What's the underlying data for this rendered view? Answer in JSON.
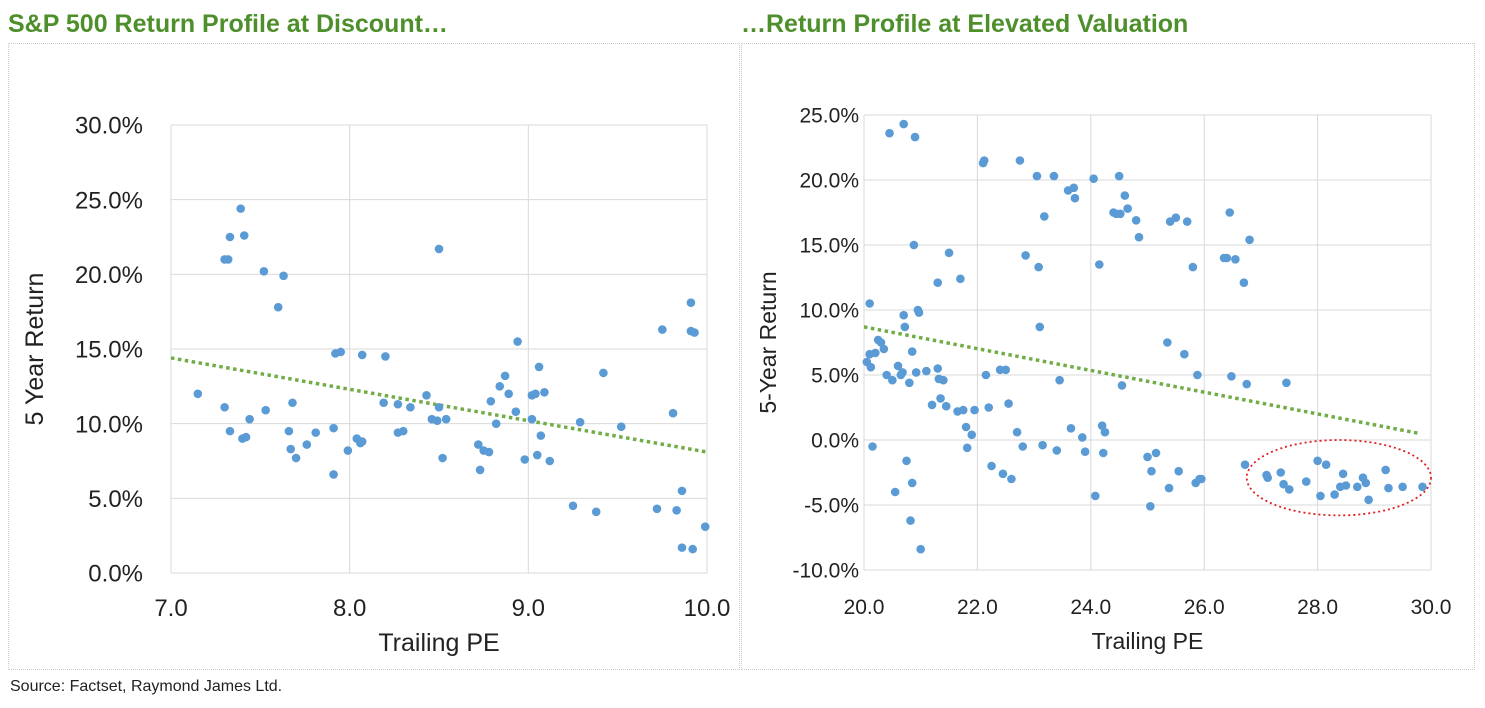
{
  "titles": {
    "left": "S&P 500 Return Profile at Discount…",
    "right": "…Return Profile at Elevated Valuation"
  },
  "source": "Source: Factset, Raymond James Ltd.",
  "colors": {
    "title_green": "#4d8f2a",
    "point_blue": "#5b9bd5",
    "trend_green": "#70ad47",
    "highlight_red": "#e02020",
    "grid": "#d9d9d9"
  },
  "chart_data": [
    {
      "type": "scatter",
      "title": "S&P 500 Return Profile at Discount…",
      "xlabel": "Trailing PE",
      "ylabel": "5 Year Return",
      "xlim": [
        7.0,
        10.0
      ],
      "ylim": [
        0.0,
        0.3
      ],
      "x_ticks": [
        7.0,
        8.0,
        9.0,
        10.0
      ],
      "x_tick_labels": [
        "7.0",
        "8.0",
        "9.0",
        "10.0"
      ],
      "y_ticks": [
        0.0,
        0.05,
        0.1,
        0.15,
        0.2,
        0.25,
        0.3
      ],
      "y_tick_labels": [
        "0.0%",
        "5.0%",
        "10.0%",
        "15.0%",
        "20.0%",
        "25.0%",
        "30.0%"
      ],
      "grid": true,
      "points": [
        [
          7.15,
          0.12
        ],
        [
          7.3,
          0.111
        ],
        [
          7.3,
          0.21
        ],
        [
          7.32,
          0.21
        ],
        [
          7.33,
          0.225
        ],
        [
          7.33,
          0.095
        ],
        [
          7.39,
          0.244
        ],
        [
          7.4,
          0.09
        ],
        [
          7.41,
          0.226
        ],
        [
          7.42,
          0.091
        ],
        [
          7.44,
          0.103
        ],
        [
          7.52,
          0.202
        ],
        [
          7.53,
          0.109
        ],
        [
          7.6,
          0.178
        ],
        [
          7.63,
          0.199
        ],
        [
          7.66,
          0.095
        ],
        [
          7.67,
          0.083
        ],
        [
          7.68,
          0.114
        ],
        [
          7.7,
          0.077
        ],
        [
          7.76,
          0.086
        ],
        [
          7.81,
          0.094
        ],
        [
          7.91,
          0.066
        ],
        [
          7.91,
          0.097
        ],
        [
          7.92,
          0.147
        ],
        [
          7.95,
          0.148
        ],
        [
          7.99,
          0.082
        ],
        [
          8.04,
          0.09
        ],
        [
          8.06,
          0.087
        ],
        [
          8.07,
          0.146
        ],
        [
          8.07,
          0.088
        ],
        [
          8.19,
          0.114
        ],
        [
          8.2,
          0.145
        ],
        [
          8.27,
          0.113
        ],
        [
          8.27,
          0.094
        ],
        [
          8.3,
          0.095
        ],
        [
          8.34,
          0.111
        ],
        [
          8.43,
          0.119
        ],
        [
          8.46,
          0.103
        ],
        [
          8.49,
          0.102
        ],
        [
          8.5,
          0.111
        ],
        [
          8.5,
          0.217
        ],
        [
          8.52,
          0.077
        ],
        [
          8.54,
          0.103
        ],
        [
          8.72,
          0.086
        ],
        [
          8.73,
          0.069
        ],
        [
          8.75,
          0.082
        ],
        [
          8.78,
          0.081
        ],
        [
          8.79,
          0.115
        ],
        [
          8.82,
          0.1
        ],
        [
          8.84,
          0.125
        ],
        [
          8.87,
          0.132
        ],
        [
          8.89,
          0.12
        ],
        [
          8.93,
          0.108
        ],
        [
          8.94,
          0.155
        ],
        [
          8.98,
          0.076
        ],
        [
          9.02,
          0.103
        ],
        [
          9.02,
          0.119
        ],
        [
          9.04,
          0.12
        ],
        [
          9.05,
          0.079
        ],
        [
          9.06,
          0.138
        ],
        [
          9.07,
          0.092
        ],
        [
          9.09,
          0.121
        ],
        [
          9.12,
          0.075
        ],
        [
          9.25,
          0.045
        ],
        [
          9.29,
          0.101
        ],
        [
          9.38,
          0.041
        ],
        [
          9.42,
          0.134
        ],
        [
          9.52,
          0.098
        ],
        [
          9.72,
          0.043
        ],
        [
          9.75,
          0.163
        ],
        [
          9.81,
          0.107
        ],
        [
          9.83,
          0.042
        ],
        [
          9.86,
          0.055
        ],
        [
          9.86,
          0.017
        ],
        [
          9.91,
          0.181
        ],
        [
          9.91,
          0.162
        ],
        [
          9.92,
          0.016
        ],
        [
          9.93,
          0.161
        ],
        [
          9.99,
          0.031
        ]
      ],
      "trendline": {
        "style": "dotted",
        "from": [
          7.0,
          0.144
        ],
        "to": [
          10.0,
          0.081
        ]
      }
    },
    {
      "type": "scatter",
      "title": "…Return Profile at Elevated Valuation",
      "xlabel": "Trailing PE",
      "ylabel": "5-Year Return",
      "xlim": [
        20.0,
        30.0
      ],
      "ylim": [
        -0.1,
        0.25
      ],
      "x_ticks": [
        20,
        22,
        24,
        26,
        28,
        30
      ],
      "x_tick_labels": [
        "20.0",
        "22.0",
        "24.0",
        "26.0",
        "28.0",
        "30.0"
      ],
      "y_ticks": [
        -0.1,
        -0.05,
        0.0,
        0.05,
        0.1,
        0.15,
        0.2,
        0.25
      ],
      "y_tick_labels": [
        "-10.0%",
        "-5.0%",
        "0.0%",
        "5.0%",
        "10.0%",
        "15.0%",
        "20.0%",
        "25.0%"
      ],
      "grid": true,
      "points": [
        [
          20.05,
          0.06
        ],
        [
          20.1,
          0.066
        ],
        [
          20.1,
          0.105
        ],
        [
          20.12,
          0.056
        ],
        [
          20.15,
          -0.005
        ],
        [
          20.2,
          0.067
        ],
        [
          20.25,
          0.077
        ],
        [
          20.3,
          0.075
        ],
        [
          20.35,
          0.07
        ],
        [
          20.4,
          0.05
        ],
        [
          20.45,
          0.236
        ],
        [
          20.5,
          0.046
        ],
        [
          20.55,
          -0.04
        ],
        [
          20.6,
          0.057
        ],
        [
          20.65,
          0.05
        ],
        [
          20.68,
          0.052
        ],
        [
          20.7,
          0.096
        ],
        [
          20.7,
          0.243
        ],
        [
          20.72,
          0.087
        ],
        [
          20.75,
          -0.016
        ],
        [
          20.8,
          0.044
        ],
        [
          20.82,
          -0.062
        ],
        [
          20.85,
          0.068
        ],
        [
          20.85,
          -0.033
        ],
        [
          20.88,
          0.15
        ],
        [
          20.9,
          0.233
        ],
        [
          20.92,
          0.052
        ],
        [
          20.95,
          0.1
        ],
        [
          20.97,
          0.098
        ],
        [
          21.0,
          -0.084
        ],
        [
          21.1,
          0.053
        ],
        [
          21.2,
          0.027
        ],
        [
          21.3,
          0.121
        ],
        [
          21.3,
          0.055
        ],
        [
          21.32,
          0.047
        ],
        [
          21.35,
          0.032
        ],
        [
          21.4,
          0.046
        ],
        [
          21.45,
          0.026
        ],
        [
          21.5,
          0.144
        ],
        [
          21.65,
          0.022
        ],
        [
          21.7,
          0.124
        ],
        [
          21.75,
          0.023
        ],
        [
          21.8,
          0.01
        ],
        [
          21.82,
          -0.006
        ],
        [
          21.9,
          0.004
        ],
        [
          21.95,
          0.023
        ],
        [
          22.1,
          0.213
        ],
        [
          22.12,
          0.215
        ],
        [
          22.15,
          0.05
        ],
        [
          22.2,
          0.025
        ],
        [
          22.25,
          -0.02
        ],
        [
          22.4,
          0.054
        ],
        [
          22.45,
          -0.026
        ],
        [
          22.5,
          0.054
        ],
        [
          22.55,
          0.028
        ],
        [
          22.6,
          -0.03
        ],
        [
          22.7,
          0.006
        ],
        [
          22.75,
          0.215
        ],
        [
          22.8,
          -0.005
        ],
        [
          22.85,
          0.142
        ],
        [
          23.05,
          0.203
        ],
        [
          23.08,
          0.133
        ],
        [
          23.1,
          0.087
        ],
        [
          23.15,
          -0.004
        ],
        [
          23.18,
          0.172
        ],
        [
          23.35,
          0.203
        ],
        [
          23.4,
          -0.008
        ],
        [
          23.45,
          0.046
        ],
        [
          23.6,
          0.192
        ],
        [
          23.65,
          0.009
        ],
        [
          23.7,
          0.194
        ],
        [
          23.72,
          0.186
        ],
        [
          23.85,
          0.002
        ],
        [
          23.9,
          -0.009
        ],
        [
          24.05,
          0.201
        ],
        [
          24.08,
          -0.043
        ],
        [
          24.15,
          0.135
        ],
        [
          24.2,
          0.011
        ],
        [
          24.22,
          -0.01
        ],
        [
          24.25,
          0.006
        ],
        [
          24.4,
          0.175
        ],
        [
          24.45,
          0.174
        ],
        [
          24.5,
          0.203
        ],
        [
          24.52,
          0.174
        ],
        [
          24.55,
          0.042
        ],
        [
          24.6,
          0.188
        ],
        [
          24.65,
          0.178
        ],
        [
          24.8,
          0.169
        ],
        [
          24.85,
          0.156
        ],
        [
          25.0,
          -0.013
        ],
        [
          25.05,
          -0.051
        ],
        [
          25.07,
          -0.024
        ],
        [
          25.15,
          -0.01
        ],
        [
          25.35,
          0.075
        ],
        [
          25.38,
          -0.037
        ],
        [
          25.4,
          0.168
        ],
        [
          25.5,
          0.171
        ],
        [
          25.55,
          -0.024
        ],
        [
          25.65,
          0.066
        ],
        [
          25.7,
          0.168
        ],
        [
          25.8,
          0.133
        ],
        [
          25.85,
          -0.033
        ],
        [
          25.88,
          0.05
        ],
        [
          25.92,
          -0.03
        ],
        [
          25.95,
          -0.03
        ],
        [
          26.35,
          0.14
        ],
        [
          26.4,
          0.14
        ],
        [
          26.45,
          0.175
        ],
        [
          26.48,
          0.049
        ],
        [
          26.55,
          0.139
        ],
        [
          26.7,
          0.121
        ],
        [
          26.72,
          -0.019
        ],
        [
          26.75,
          0.043
        ],
        [
          26.8,
          0.154
        ],
        [
          27.1,
          -0.027
        ],
        [
          27.12,
          -0.029
        ],
        [
          27.35,
          -0.025
        ],
        [
          27.4,
          -0.034
        ],
        [
          27.45,
          0.044
        ],
        [
          27.5,
          -0.038
        ],
        [
          27.8,
          -0.032
        ],
        [
          28.0,
          -0.016
        ],
        [
          28.05,
          -0.043
        ],
        [
          28.15,
          -0.019
        ],
        [
          28.3,
          -0.042
        ],
        [
          28.4,
          -0.036
        ],
        [
          28.45,
          -0.026
        ],
        [
          28.5,
          -0.035
        ],
        [
          28.7,
          -0.036
        ],
        [
          28.8,
          -0.029
        ],
        [
          28.85,
          -0.033
        ],
        [
          28.9,
          -0.046
        ],
        [
          29.2,
          -0.023
        ],
        [
          29.25,
          -0.037
        ],
        [
          29.5,
          -0.036
        ],
        [
          29.85,
          -0.036
        ]
      ],
      "trendline": {
        "style": "dotted",
        "from": [
          20.0,
          0.087
        ],
        "to": [
          29.8,
          0.005
        ]
      },
      "highlight": {
        "shape": "ellipse",
        "style": "dotted",
        "x_range": [
          26.75,
          30.0
        ],
        "y_range": [
          -0.058,
          -0.0
        ]
      }
    }
  ]
}
